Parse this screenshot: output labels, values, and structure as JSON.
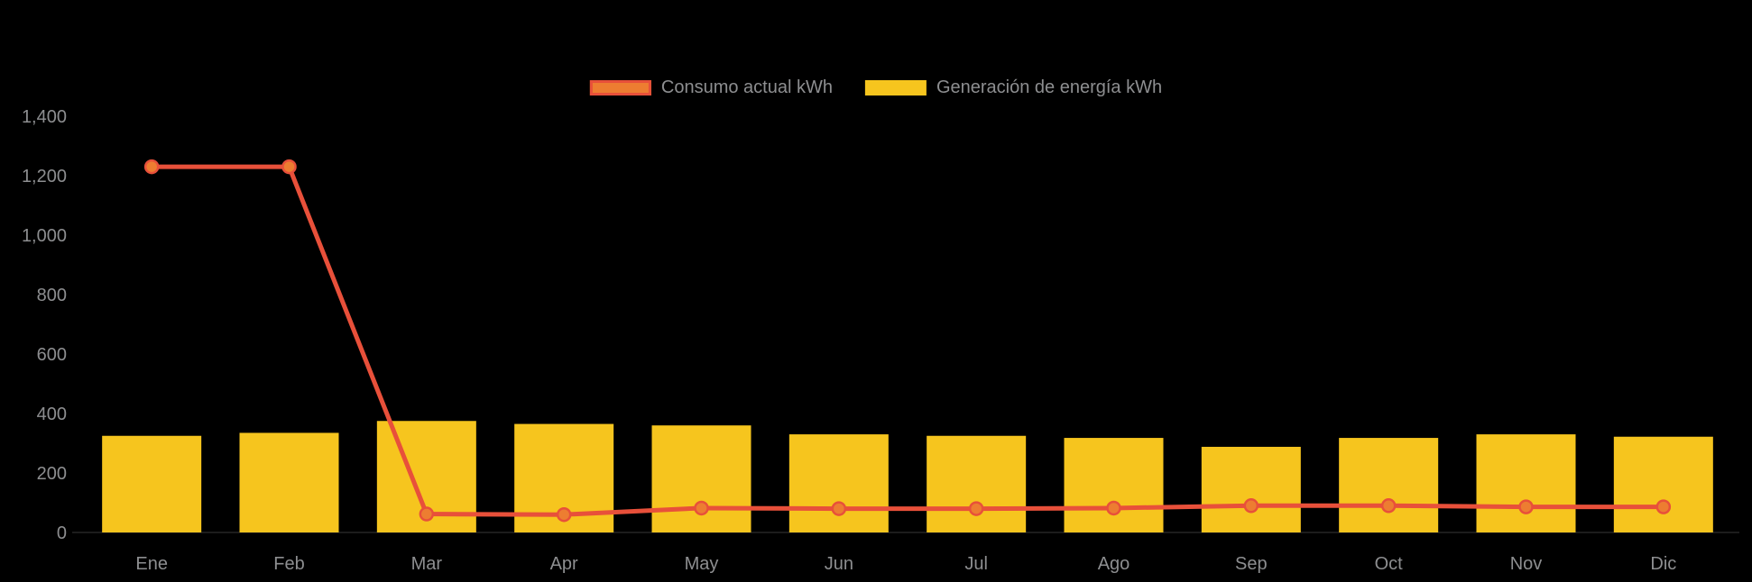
{
  "chart_data": {
    "type": "bar+line",
    "title": "",
    "categories": [
      "Ene",
      "Feb",
      "Mar",
      "Apr",
      "May",
      "Jun",
      "Jul",
      "Ago",
      "Sep",
      "Oct",
      "Nov",
      "Dic"
    ],
    "series": [
      {
        "name": "Consumo actual kWh",
        "type": "line",
        "color": "#e8503a",
        "point_color": "#ed7d31",
        "values": [
          1230,
          1230,
          62,
          60,
          82,
          80,
          80,
          82,
          90,
          90,
          86,
          86
        ]
      },
      {
        "name": "Generación de energía kWh",
        "type": "bar",
        "color": "#f6c51e",
        "values": [
          325,
          335,
          375,
          365,
          360,
          330,
          325,
          318,
          288,
          318,
          330,
          322
        ]
      }
    ],
    "xlabel": "",
    "ylabel": "",
    "ylim": [
      0,
      1400
    ],
    "ytick_step": 200,
    "ytick_labels": [
      "0",
      "200",
      "400",
      "600",
      "800",
      "1,000",
      "1,200",
      "1,400"
    ],
    "tick_color": "#8d8e90",
    "background_color": "#000000",
    "grid": false,
    "legend_position": "top-center"
  }
}
